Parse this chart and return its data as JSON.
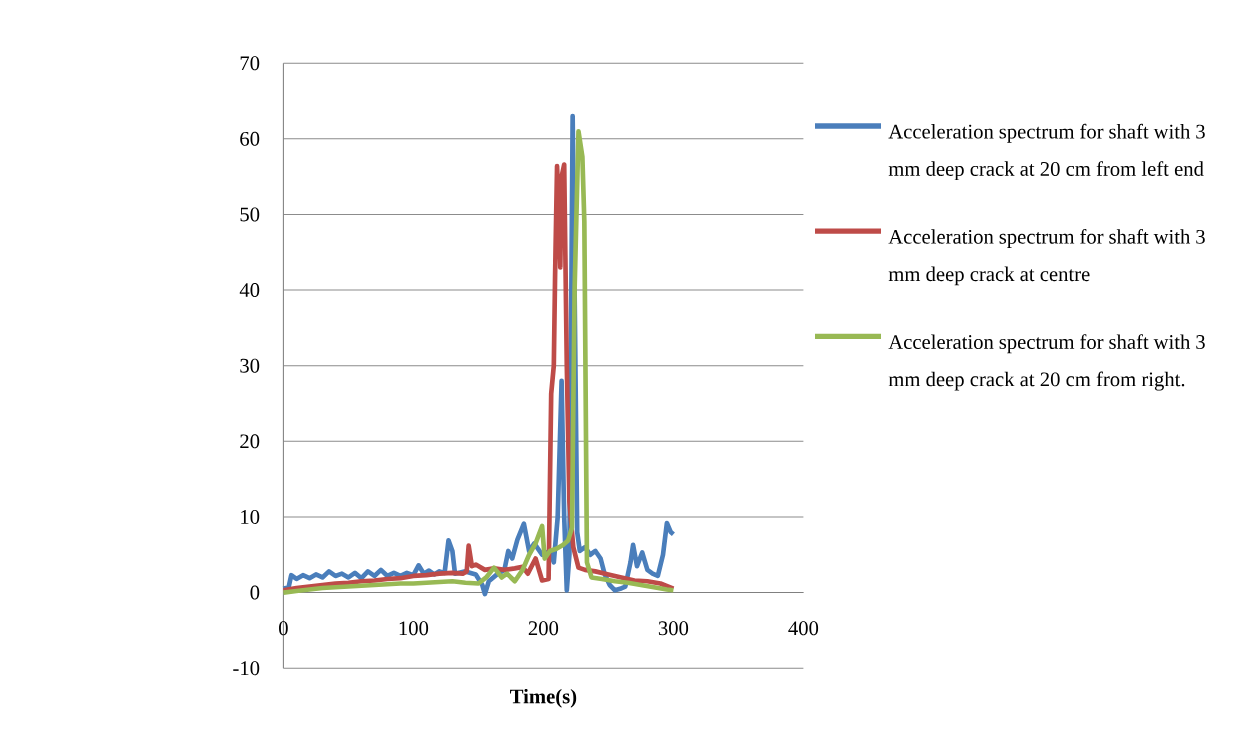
{
  "chart_data": {
    "type": "line",
    "xlabel": "Time(s)",
    "xlim": [
      0,
      400
    ],
    "xticks": [
      0,
      100,
      200,
      300,
      400
    ],
    "ylim": [
      -10,
      70
    ],
    "yticks": [
      -10,
      0,
      10,
      20,
      30,
      40,
      50,
      60,
      70
    ],
    "grid": "y",
    "legend": "right",
    "marker": "none",
    "line_style": "solid",
    "series": [
      {
        "name": "Acceleration spectrum for shaft with 3 mm deep crack at 20 cm from left end",
        "color": "#4a7ebb",
        "x": [
          0,
          4,
          6,
          10,
          15,
          20,
          25,
          30,
          35,
          40,
          45,
          50,
          55,
          60,
          65,
          70,
          75,
          80,
          85,
          90,
          95,
          100,
          104,
          108,
          112,
          116,
          120,
          124,
          127,
          130,
          132,
          140,
          148,
          153,
          155,
          158,
          165,
          170,
          173,
          176,
          180,
          185,
          189,
          193,
          199,
          205,
          208,
          211,
          214,
          216,
          218,
          220,
          222.5,
          224,
          226,
          228,
          232,
          236,
          240,
          244,
          247,
          251,
          255,
          259,
          263,
          267,
          269,
          272,
          276,
          280,
          284,
          288,
          292,
          295,
          298,
          300
        ],
        "values": [
          0.5,
          0.7,
          2.3,
          1.8,
          2.3,
          1.9,
          2.4,
          2.0,
          2.8,
          2.2,
          2.5,
          2.0,
          2.6,
          1.9,
          2.8,
          2.2,
          3.0,
          2.2,
          2.6,
          2.2,
          2.6,
          2.3,
          3.6,
          2.5,
          2.9,
          2.4,
          2.8,
          2.6,
          6.9,
          5.5,
          2.5,
          2.8,
          2.4,
          1.0,
          -0.2,
          1.5,
          2.5,
          3.0,
          5.5,
          4.5,
          7.0,
          9.1,
          5.5,
          6.5,
          5.0,
          5.5,
          4.0,
          10,
          28,
          10,
          0.3,
          5,
          63,
          40,
          8,
          5.5,
          6,
          5,
          5.5,
          4.5,
          2.5,
          1,
          0.3,
          0.5,
          0.8,
          4,
          6.3,
          3.5,
          5.3,
          3,
          2.5,
          2.2,
          5,
          9.2,
          8,
          7.7
        ]
      },
      {
        "name": "Acceleration spectrum for shaft with 3 mm deep crack at centre",
        "color": "#be4b48",
        "x": [
          0,
          10,
          20,
          30,
          40,
          50,
          60,
          70,
          80,
          90,
          100,
          110,
          120,
          130,
          138,
          141,
          142.5,
          145,
          148,
          155,
          162,
          170,
          178,
          184,
          188,
          194,
          199,
          204,
          206,
          208,
          209,
          210.5,
          212,
          213,
          214,
          216,
          218,
          220,
          223,
          227,
          232,
          240,
          250,
          260,
          270,
          280,
          290,
          300
        ],
        "values": [
          0.3,
          0.6,
          0.8,
          1.0,
          1.2,
          1.3,
          1.5,
          1.6,
          1.8,
          1.9,
          2.2,
          2.3,
          2.5,
          2.6,
          2.5,
          2.8,
          6.2,
          3.5,
          3.7,
          3.0,
          3.2,
          3.0,
          3.2,
          3.4,
          2.5,
          4.5,
          1.6,
          1.8,
          26.3,
          30,
          42,
          56.4,
          50,
          43,
          55,
          56.6,
          30,
          12,
          6,
          3.3,
          3,
          2.8,
          2.4,
          2,
          1.6,
          1.5,
          1.2,
          0.5
        ]
      },
      {
        "name": "Acceleration spectrum for shaft with 3 mm deep crack at 20 cm from right.",
        "color": "#98b954",
        "x": [
          0,
          10,
          20,
          30,
          40,
          50,
          60,
          70,
          80,
          90,
          100,
          110,
          120,
          130,
          140,
          150,
          156,
          162,
          168,
          172,
          178,
          184,
          189,
          194,
          199,
          201,
          205,
          210,
          215,
          219,
          222,
          224,
          227,
          230,
          231.5,
          233.5,
          237,
          245,
          255,
          265,
          275,
          285,
          295,
          300
        ],
        "values": [
          0,
          0.2,
          0.4,
          0.6,
          0.7,
          0.8,
          0.9,
          1.0,
          1.1,
          1.2,
          1.2,
          1.3,
          1.4,
          1.5,
          1.3,
          1.2,
          2,
          3.3,
          2,
          2.5,
          1.5,
          3,
          5,
          6.5,
          8.8,
          4.5,
          5.5,
          5.8,
          6.3,
          6.9,
          8.6,
          40,
          61,
          57.6,
          49,
          4,
          2,
          1.8,
          1.5,
          1.3,
          1.0,
          0.7,
          0.4,
          0.3
        ]
      }
    ]
  }
}
